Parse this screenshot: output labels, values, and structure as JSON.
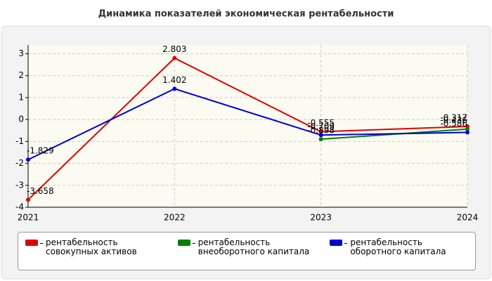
{
  "chart_data": {
    "type": "line",
    "title": "Динамика показателей экономическая рентабельности",
    "categories": [
      "2021",
      "2022",
      "2023",
      "2024"
    ],
    "series": [
      {
        "name": "рентабельность совокупных активов",
        "color": "#e00000",
        "values": [
          -3.658,
          2.803,
          -0.555,
          -0.317
        ]
      },
      {
        "name": "рентабельность внеоборотного капитала",
        "color": "#008000",
        "values": [
          null,
          null,
          -0.898,
          -0.436
        ]
      },
      {
        "name": "рентабельность оборотного капитала",
        "color": "#0000d0",
        "values": [
          -1.829,
          1.402,
          -0.709,
          -0.586
        ]
      }
    ],
    "ylim": [
      -4,
      3.4
    ],
    "yticks": [
      -4,
      -3,
      -2,
      -1,
      0,
      1,
      2,
      3
    ],
    "grid": true
  }
}
